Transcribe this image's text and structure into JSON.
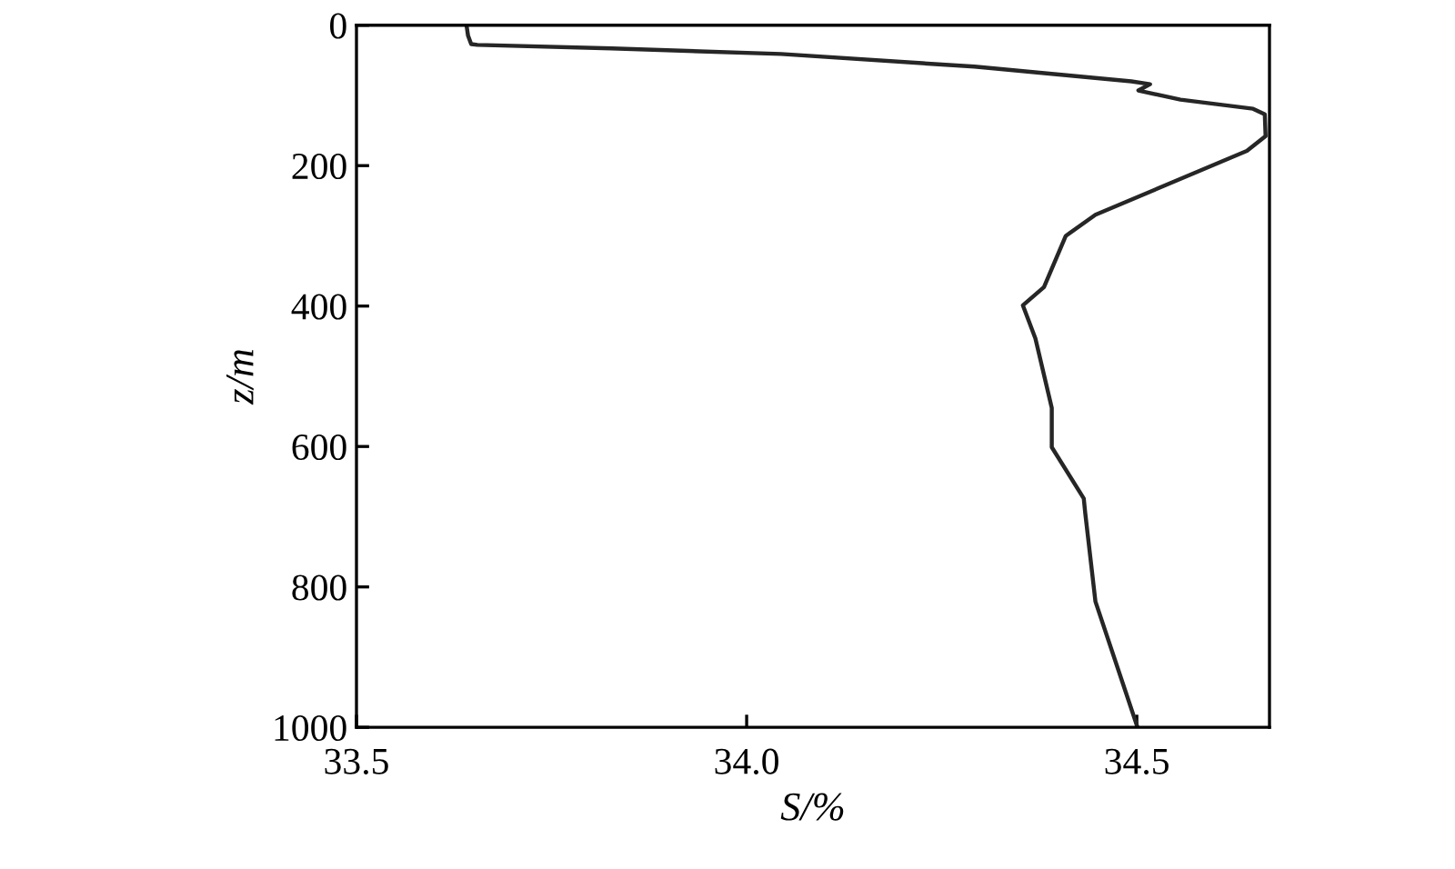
{
  "chart_data": {
    "type": "line",
    "xlabel": "S/%",
    "ylabel": "z/m",
    "xlim": [
      33.5,
      34.67
    ],
    "xticks": [
      33.5,
      {
        "value": 34.0,
        "label": "34.0"
      },
      34.5
    ],
    "ylim": [
      1000,
      0
    ],
    "yticks": [
      0,
      200,
      400,
      600,
      800,
      1000
    ],
    "grid": false,
    "marker": "none",
    "line_style": "solid",
    "series": [
      {
        "color": "#262626",
        "x": [
          33.641,
          33.643,
          33.647,
          33.655,
          33.827,
          34.044,
          34.292,
          34.493,
          34.517,
          34.502,
          34.556,
          34.649,
          34.664,
          34.665,
          34.641,
          34.447,
          34.409,
          34.381,
          34.354,
          34.37,
          34.391,
          34.391,
          34.432,
          34.434,
          34.447,
          34.5
        ],
        "values": [
          0,
          15,
          27,
          28,
          33,
          41,
          59,
          80,
          84,
          93,
          106,
          119,
          127,
          158,
          179,
          270,
          300,
          373,
          399,
          446,
          545,
          601,
          674,
          696,
          821,
          997
        ]
      }
    ]
  }
}
